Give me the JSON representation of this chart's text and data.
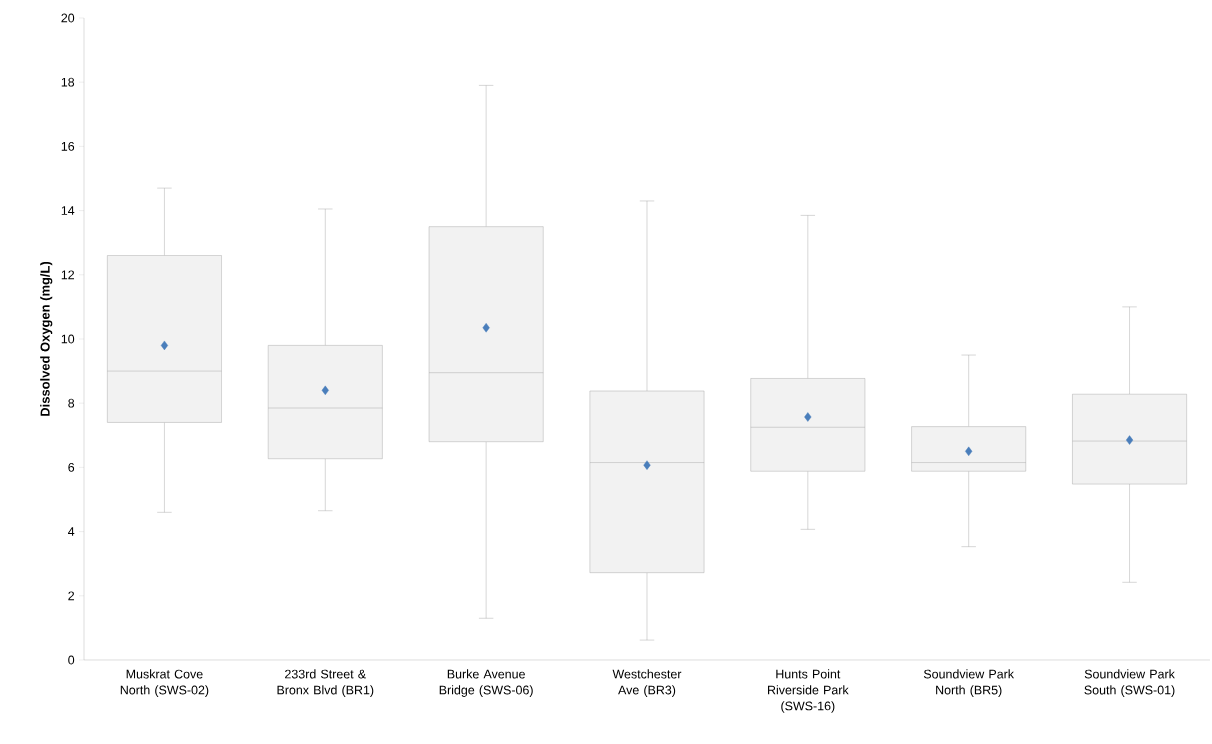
{
  "chart_data": {
    "type": "box",
    "ylabel": "Dissolved Oxygen (mg/L)",
    "categories": [
      "Muskrat Cove North (SWS-02)",
      "233rd Street & Bronx Blvd (BR1)",
      "Burke Avenue Bridge (SWS-06)",
      "Westchester Ave (BR3)",
      "Hunts Point Riverside Park (SWS-16)",
      "Soundview Park North (BR5)",
      "Soundview Park South (SWS-01)"
    ],
    "boxes": [
      {
        "low": 4.6,
        "q1": 7.4,
        "median": 9.0,
        "q3": 12.6,
        "high": 14.7,
        "mean": 9.8
      },
      {
        "low": 4.65,
        "q1": 6.27,
        "median": 7.85,
        "q3": 9.8,
        "high": 14.05,
        "mean": 8.4
      },
      {
        "low": 1.3,
        "q1": 6.8,
        "median": 8.95,
        "q3": 13.5,
        "high": 17.9,
        "mean": 10.35
      },
      {
        "low": 0.62,
        "q1": 2.72,
        "median": 6.15,
        "q3": 8.38,
        "high": 14.3,
        "mean": 6.07
      },
      {
        "low": 4.07,
        "q1": 5.88,
        "median": 7.25,
        "q3": 8.77,
        "high": 13.85,
        "mean": 7.57
      },
      {
        "low": 3.53,
        "q1": 5.88,
        "median": 6.15,
        "q3": 7.27,
        "high": 9.5,
        "mean": 6.5
      },
      {
        "low": 2.42,
        "q1": 5.48,
        "median": 6.82,
        "q3": 8.28,
        "high": 11.0,
        "mean": 6.85
      }
    ],
    "color": "#f2f2f2",
    "ylim": [
      0,
      20
    ],
    "yticks": [
      0,
      2,
      4,
      6,
      8,
      10,
      12,
      14,
      16,
      18,
      20
    ],
    "marker": "diamond"
  }
}
